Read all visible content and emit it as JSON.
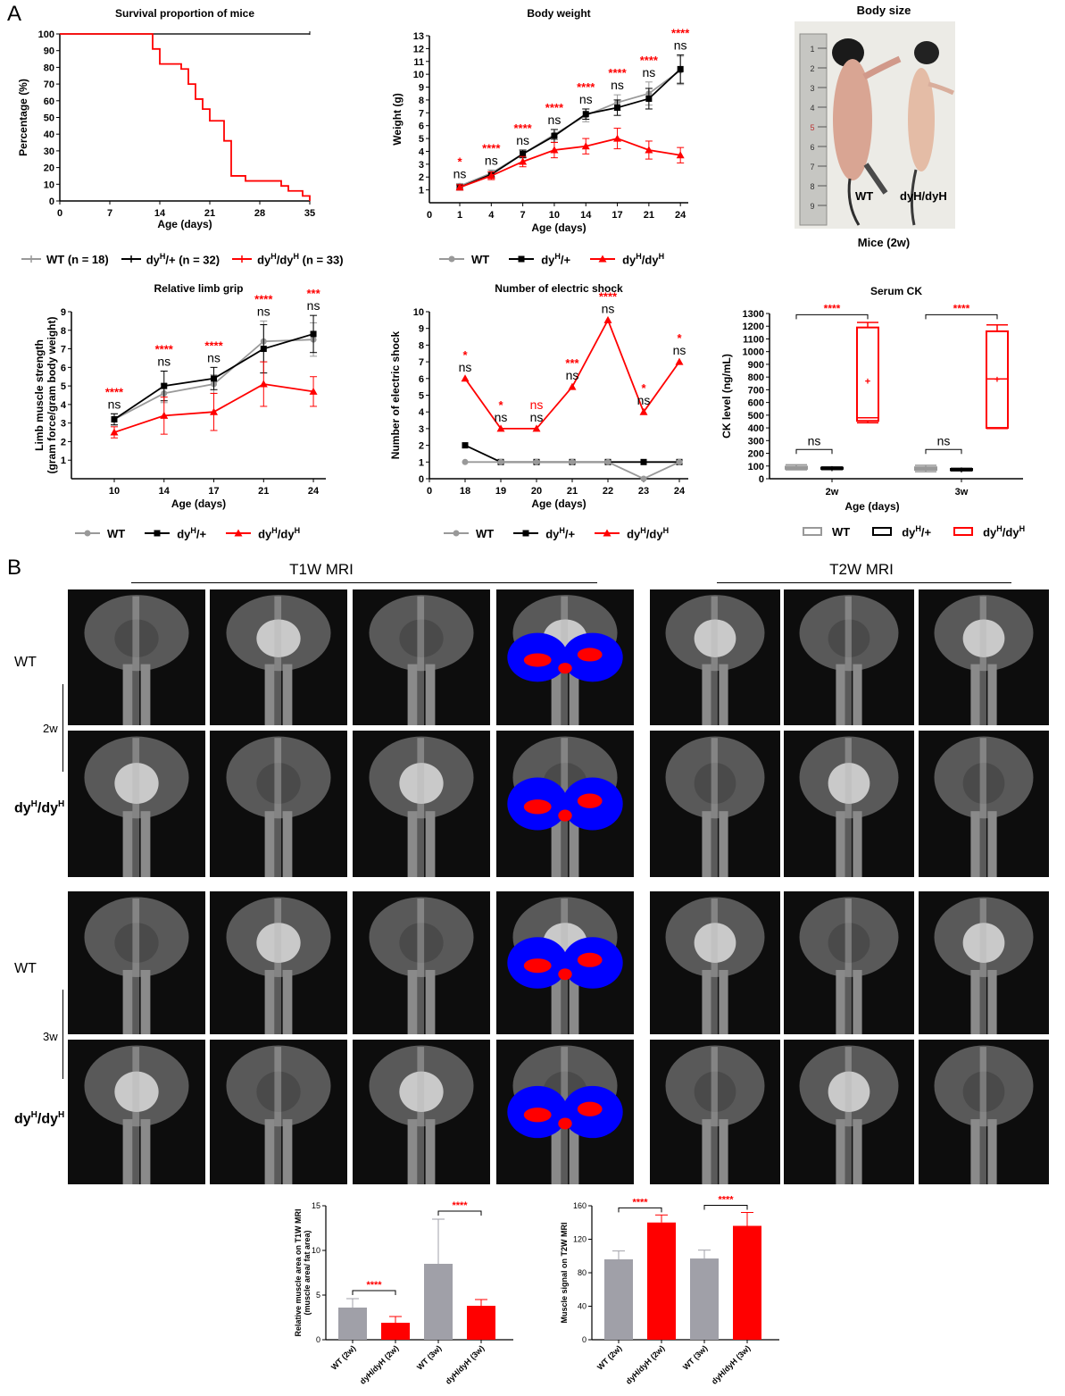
{
  "panel_labels": {
    "a": "A",
    "b": "B"
  },
  "legend_row1": {
    "wt": "WT (n = 18)",
    "het": "dy",
    "het_sup": "H",
    "het_tail": "/+ (n = 32)",
    "hom": "dy",
    "hom_sup1": "H",
    "hom_mid": "/dy",
    "hom_sup2": "H",
    "hom_tail": " (n = 33)"
  },
  "legend_generic": {
    "wt": "WT",
    "het_base": "dy",
    "het_sup": "H",
    "het_tail": "/+",
    "hom_base": "dy",
    "hom_sup": "H",
    "hom_mid": "/dy"
  },
  "photo": {
    "title": "Body size",
    "caption": "Mice (2w)",
    "label_wt": "WT",
    "label_mut": "dyH/dyH",
    "ruler_marks": [
      "1",
      "2",
      "3",
      "4",
      "5",
      "6",
      "7",
      "8",
      "9"
    ]
  },
  "mri": {
    "t1w_title": "T1W MRI",
    "t2w_title": "T2W MRI",
    "group_2w": "2w",
    "group_3w": "3w",
    "row_wt": "WT",
    "row_mut_base": "dy",
    "row_mut_sup": "H",
    "row_mut_mid": "/dy"
  },
  "colors": {
    "wt": "#999999",
    "het": "#000000",
    "hom": "#ff0000",
    "bar_wt": "#a0a0a8",
    "bar_hom": "#ff0000"
  },
  "chart_data": [
    {
      "id": "survival",
      "type": "line",
      "title": "Survival proportion of mice",
      "xlabel": "Age  (days)",
      "ylabel": "Percentage (%)",
      "xlim": [
        0,
        35
      ],
      "ylim": [
        0,
        100
      ],
      "xticks": [
        0,
        7,
        14,
        21,
        28,
        35
      ],
      "yticks": [
        0,
        10,
        20,
        30,
        40,
        50,
        60,
        70,
        80,
        90,
        100
      ],
      "series": [
        {
          "name": "WT (n = 18)",
          "step": true,
          "x": [
            0,
            35
          ],
          "y": [
            100,
            100
          ]
        },
        {
          "name": "dyH/+ (n = 32)",
          "step": true,
          "x": [
            0,
            35
          ],
          "y": [
            100,
            100
          ]
        },
        {
          "name": "dyH/dyH (n = 33)",
          "step": true,
          "x": [
            0,
            12,
            13,
            14,
            16,
            17,
            18,
            19,
            20,
            21,
            22,
            23,
            24,
            25,
            26,
            30,
            31,
            32,
            34,
            35
          ],
          "y": [
            100,
            100,
            91,
            82,
            82,
            79,
            70,
            61,
            55,
            48,
            48,
            36,
            15,
            15,
            12,
            12,
            9,
            6,
            3,
            0
          ]
        }
      ]
    },
    {
      "id": "body_weight",
      "type": "line",
      "title": "Body weight",
      "xlabel": "Age (days)",
      "ylabel": "Weight (g)",
      "categories": [
        "1",
        "4",
        "7",
        "10",
        "14",
        "17",
        "21",
        "24"
      ],
      "ylim": [
        0,
        13
      ],
      "yticks": [
        1,
        2,
        3,
        4,
        5,
        6,
        7,
        8,
        9,
        10,
        11,
        12,
        13
      ],
      "series": [
        {
          "name": "WT",
          "values": [
            1.3,
            2.3,
            3.8,
            5.3,
            6.8,
            7.8,
            8.5,
            10.3
          ],
          "err": [
            0.2,
            0.25,
            0.3,
            0.4,
            0.5,
            0.6,
            0.9,
            1.1
          ]
        },
        {
          "name": "dyH/+",
          "values": [
            1.2,
            2.2,
            3.8,
            5.2,
            6.9,
            7.4,
            8.1,
            10.4
          ],
          "err": [
            0.2,
            0.2,
            0.3,
            0.5,
            0.4,
            0.6,
            0.8,
            1.1
          ]
        },
        {
          "name": "dyH/dyH",
          "values": [
            1.2,
            2.1,
            3.2,
            4.1,
            4.4,
            5.0,
            4.1,
            3.7
          ],
          "err": [
            0.2,
            0.3,
            0.4,
            0.6,
            0.6,
            0.8,
            0.7,
            0.6
          ]
        }
      ],
      "annotations_red": [
        "*",
        "****",
        "****",
        "****",
        "****",
        "****",
        "****",
        "****"
      ],
      "annotations_black": [
        "ns",
        "ns",
        "ns",
        "ns",
        "ns",
        "ns",
        "ns",
        "ns"
      ]
    },
    {
      "id": "limb_grip",
      "type": "line",
      "title": "Relative limb grip",
      "xlabel": "Age (days)",
      "ylabel": "Limb muscle strength",
      "ylabel2": "(gram force/gram body weight)",
      "categories": [
        "10",
        "14",
        "17",
        "21",
        "24"
      ],
      "ylim": [
        0,
        9
      ],
      "yticks": [
        1,
        2,
        3,
        4,
        5,
        6,
        7,
        8,
        9
      ],
      "series": [
        {
          "name": "WT",
          "values": [
            3.2,
            4.6,
            5.1,
            7.4,
            7.5
          ],
          "err": [
            0.3,
            0.5,
            0.5,
            1.1,
            0.9
          ]
        },
        {
          "name": "dyH/+",
          "values": [
            3.2,
            5.0,
            5.4,
            7.0,
            7.8
          ],
          "err": [
            0.3,
            0.8,
            0.6,
            1.3,
            1.0
          ]
        },
        {
          "name": "dyH/dyH",
          "values": [
            2.5,
            3.4,
            3.6,
            5.1,
            4.7
          ],
          "err": [
            0.3,
            1.0,
            1.0,
            1.2,
            0.8
          ]
        }
      ],
      "annotations_red": [
        "****",
        "****",
        "****",
        "****",
        "***"
      ],
      "annotations_black": [
        "ns",
        "ns",
        "ns",
        "ns",
        "ns"
      ]
    },
    {
      "id": "electric_shock",
      "type": "line",
      "title": "Number of electric shock",
      "xlabel": "Age (days)",
      "ylabel": "Number of electric shock",
      "xlim": [
        0,
        24
      ],
      "xticks": [
        0,
        18,
        19,
        20,
        21,
        22,
        23,
        24
      ],
      "ylim": [
        0,
        10
      ],
      "yticks": [
        0,
        1,
        2,
        3,
        4,
        5,
        6,
        7,
        8,
        9,
        10
      ],
      "series": [
        {
          "name": "WT",
          "x": [
            18,
            19,
            20,
            21,
            22,
            23,
            24
          ],
          "values": [
            1,
            1,
            1,
            1,
            1,
            0,
            1
          ]
        },
        {
          "name": "dyH/+",
          "x": [
            18,
            19,
            20,
            21,
            22,
            23,
            24
          ],
          "values": [
            2,
            1,
            1,
            1,
            1,
            1,
            1
          ]
        },
        {
          "name": "dyH/dyH",
          "x": [
            18,
            19,
            20,
            21,
            22,
            23,
            24
          ],
          "values": [
            6,
            3,
            3,
            5.5,
            9.5,
            4,
            7
          ]
        }
      ],
      "annotations_red": [
        "*",
        "*",
        "ns",
        "***",
        "****",
        "*",
        "*"
      ],
      "annotations_black": [
        "ns",
        "ns",
        "ns",
        "ns",
        "ns",
        "ns",
        "ns"
      ]
    },
    {
      "id": "serum_ck",
      "type": "box",
      "title": "Serum CK",
      "xlabel": "Age (days)",
      "ylabel": "CK level (ng/mL)",
      "categories": [
        "2w",
        "3w"
      ],
      "ylim": [
        0,
        1300
      ],
      "yticks": [
        0,
        100,
        200,
        300,
        400,
        500,
        600,
        700,
        800,
        900,
        1000,
        1100,
        1200,
        1300
      ],
      "series": [
        {
          "name": "WT",
          "boxes": [
            {
              "min": 70,
              "q1": 78,
              "median": 85,
              "q3": 95,
              "max": 110,
              "mean": 87
            },
            {
              "min": 55,
              "q1": 70,
              "median": 80,
              "q3": 90,
              "max": 105,
              "mean": 80
            }
          ]
        },
        {
          "name": "dyH/+",
          "boxes": [
            {
              "min": 72,
              "q1": 78,
              "median": 82,
              "q3": 87,
              "max": 92,
              "mean": 82
            },
            {
              "min": 62,
              "q1": 67,
              "median": 72,
              "q3": 77,
              "max": 82,
              "mean": 72
            }
          ]
        },
        {
          "name": "dyH/dyH",
          "boxes": [
            {
              "min": 440,
              "q1": 455,
              "median": 480,
              "q3": 1190,
              "max": 1230,
              "mean": 770
            },
            {
              "min": 395,
              "q1": 400,
              "median": 785,
              "q3": 1160,
              "max": 1210,
              "mean": 785
            }
          ]
        }
      ],
      "comparisons": [
        {
          "group": "2w",
          "top": "****",
          "bottom": "ns"
        },
        {
          "group": "3w",
          "top": "****",
          "bottom": "ns"
        }
      ]
    },
    {
      "id": "t1w_bar",
      "type": "bar",
      "title": "",
      "ylabel": "Relative muscle area on T1W MRI",
      "ylabel2": "(muscle area/ fat area)",
      "categories": [
        "WT (2w)",
        "dyH/dyH (2w)",
        "WT (3w)",
        "dyH/dyH (3w)"
      ],
      "values": [
        3.6,
        1.9,
        8.5,
        3.8
      ],
      "err": [
        1.0,
        0.7,
        5.0,
        0.7
      ],
      "bar_colors": [
        "#a0a0a8",
        "#ff0000",
        "#a0a0a8",
        "#ff0000"
      ],
      "ylim": [
        0,
        15
      ],
      "yticks": [
        0,
        5,
        10,
        15
      ],
      "comparisons": [
        "****",
        "****"
      ]
    },
    {
      "id": "t2w_bar",
      "type": "bar",
      "title": "",
      "ylabel": "Muscle signal on T2W MRI",
      "categories": [
        "WT (2w)",
        "dyH/dyH (2w)",
        "WT (3w)",
        "dyH/dyH (3w)"
      ],
      "values": [
        96,
        140,
        97,
        136
      ],
      "err": [
        10,
        9,
        10,
        16
      ],
      "bar_colors": [
        "#a0a0a8",
        "#ff0000",
        "#a0a0a8",
        "#ff0000"
      ],
      "ylim": [
        0,
        160
      ],
      "yticks": [
        0,
        40,
        80,
        120,
        160
      ],
      "comparisons": [
        "****",
        "****"
      ]
    }
  ]
}
